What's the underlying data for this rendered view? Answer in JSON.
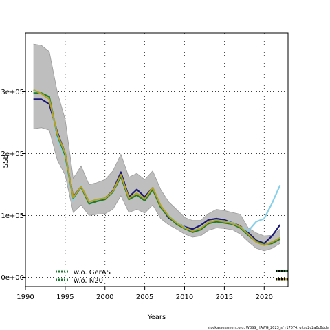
{
  "chart_data": {
    "type": "line",
    "title": "",
    "xlabel": "Years",
    "ylabel": "SSB",
    "xlim": [
      1990,
      2023
    ],
    "ylim": [
      -15000,
      395000
    ],
    "x_ticks": [
      1990,
      1995,
      2000,
      2005,
      2010,
      2015,
      2020
    ],
    "x_tick_labels": [
      "1990",
      "1995",
      "2000",
      "2005",
      "2010",
      "2015",
      "2020"
    ],
    "y_ticks": [
      0,
      100000,
      200000,
      300000
    ],
    "y_tick_labels": [
      "0e+00",
      "1e+05",
      "2e+05",
      "3e+05"
    ],
    "grid": true,
    "x": [
      1991,
      1992,
      1993,
      1994,
      1995,
      1996,
      1997,
      1998,
      1999,
      2000,
      2001,
      2002,
      2003,
      2004,
      2005,
      2006,
      2007,
      2008,
      2009,
      2010,
      2011,
      2012,
      2013,
      2014,
      2015,
      2016,
      2017,
      2018,
      2019,
      2020,
      2021,
      2022
    ],
    "band": {
      "upper": [
        377000,
        375000,
        365000,
        300000,
        255000,
        160000,
        180000,
        150000,
        153000,
        158000,
        172000,
        199000,
        162000,
        168000,
        158000,
        172000,
        142000,
        122000,
        110000,
        97000,
        92000,
        92000,
        103000,
        110000,
        108000,
        105000,
        102000,
        80000,
        72000,
        67000,
        68000,
        78000
      ],
      "lower": [
        240000,
        242000,
        238000,
        190000,
        165000,
        105000,
        117000,
        100000,
        102000,
        103000,
        110000,
        132000,
        105000,
        110000,
        104000,
        117000,
        95000,
        85000,
        78000,
        70000,
        65000,
        67000,
        76000,
        80000,
        79000,
        77000,
        70000,
        58000,
        47000,
        43000,
        47000,
        55000
      ],
      "color": "#bebebe"
    },
    "series": [
      {
        "color": "#1b1777",
        "values": [
          288000,
          288000,
          280000,
          235000,
          200000,
          130000,
          147000,
          122000,
          125000,
          128000,
          140000,
          170000,
          130000,
          142000,
          130000,
          145000,
          115000,
          96000,
          88000,
          82000,
          78000,
          84000,
          93000,
          95000,
          93000,
          88000,
          83000,
          72000,
          60000,
          55000,
          67000,
          85000
        ]
      },
      {
        "color": "#87cfe8",
        "values": [
          300000,
          298000,
          292000,
          225000,
          193000,
          125000,
          148000,
          120000,
          125000,
          127000,
          137000,
          165000,
          128000,
          134000,
          126000,
          145000,
          115000,
          100000,
          89000,
          81000,
          74000,
          80000,
          89000,
          92000,
          91000,
          88000,
          82000,
          75000,
          90000,
          95000,
          120000,
          149000
        ]
      },
      {
        "color": "#1e7a2f",
        "values": [
          298000,
          298000,
          292000,
          230000,
          197000,
          128000,
          146000,
          119000,
          123000,
          126000,
          138000,
          163000,
          126000,
          133000,
          124000,
          142000,
          113000,
          98000,
          86000,
          79000,
          73000,
          77000,
          87000,
          90000,
          88000,
          86000,
          80000,
          68000,
          58000,
          53000,
          55000,
          62000
        ]
      },
      {
        "color": "#b5a328",
        "values": [
          303000,
          297000,
          288000,
          232000,
          200000,
          129000,
          147000,
          122000,
          126000,
          128000,
          139000,
          166000,
          128000,
          136000,
          127000,
          145000,
          116000,
          99000,
          88000,
          80000,
          75000,
          79000,
          89000,
          92000,
          90000,
          87000,
          82000,
          70000,
          57000,
          52000,
          57000,
          64000
        ]
      }
    ],
    "legend": {
      "placement": "bottom-left",
      "entries": [
        {
          "label": "w.o. GerAS",
          "color": "#1e7a2f"
        },
        {
          "label": "w.o. N20",
          "color": "#1e7a2f"
        }
      ]
    },
    "footer": "stockassessment.org, WBSS_HAWG_2023_sf r17074, gitsc2c2a0c6dde"
  }
}
